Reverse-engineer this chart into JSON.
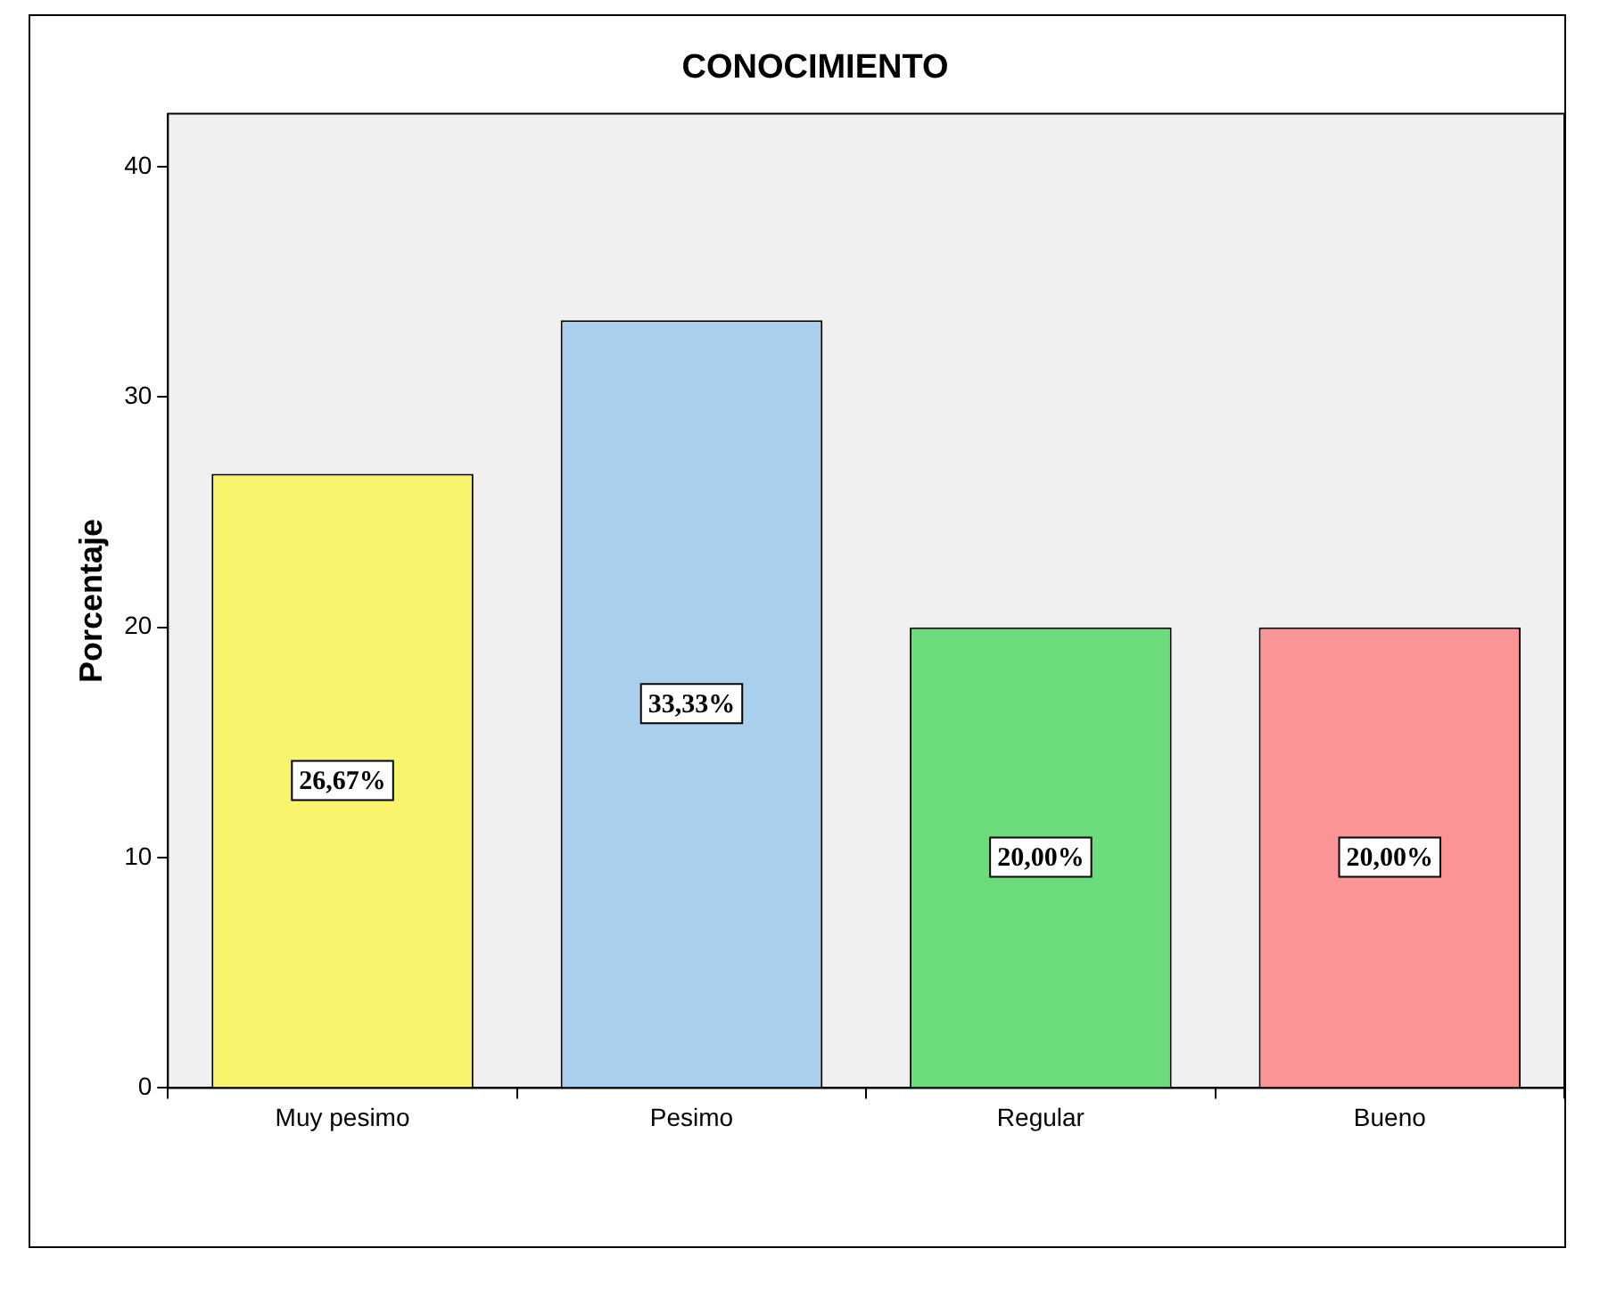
{
  "chart_data": {
    "type": "bar",
    "title": "CONOCIMIENTO",
    "ylabel": "Porcentaje",
    "categories": [
      "Muy pesimo",
      "Pesimo",
      "Regular",
      "Bueno"
    ],
    "values": [
      26.67,
      33.33,
      20.0,
      20.0
    ],
    "colors": [
      "#f8f46c",
      "#aacfee",
      "#6cdb7c",
      "#fb9494"
    ],
    "value_labels": [
      "26,67%",
      "33,33%",
      "20,00%",
      "20,00%"
    ],
    "ylim": [
      0,
      42.3
    ],
    "yticks": [
      0,
      10,
      20,
      30,
      40
    ],
    "grid": false,
    "legend": false
  }
}
